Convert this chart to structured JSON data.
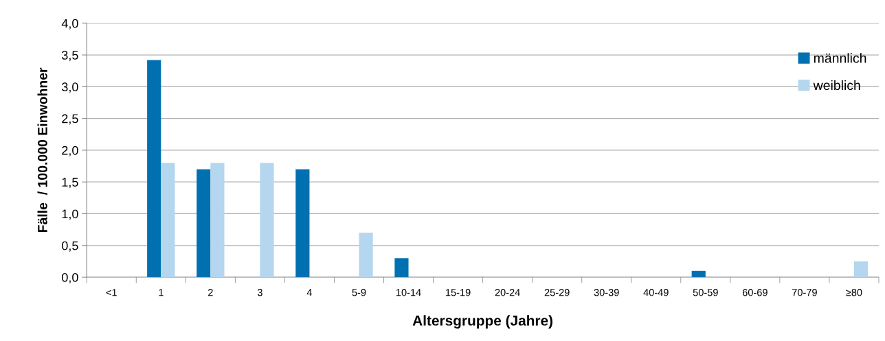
{
  "chart_data": {
    "type": "bar",
    "xlabel": "Altersgruppe (Jahre)",
    "ylabel": "Fälle  / 100.000 Einwohner",
    "categories": [
      "<1",
      "1",
      "2",
      "3",
      "4",
      "5-9",
      "10-14",
      "15-19",
      "20-24",
      "25-29",
      "30-39",
      "40-49",
      "50-59",
      "60-69",
      "70-79",
      "≥80"
    ],
    "series": [
      {
        "name": "männlich",
        "color": "#0070b0",
        "values": [
          0,
          3.42,
          1.7,
          0,
          1.7,
          0,
          0.3,
          0,
          0,
          0,
          0,
          0,
          0.1,
          0,
          0,
          0
        ]
      },
      {
        "name": "weiblich",
        "color": "#b4d6ee",
        "values": [
          0,
          1.8,
          1.8,
          1.8,
          0,
          0.7,
          0,
          0,
          0,
          0,
          0,
          0,
          0,
          0,
          0,
          0.25
        ]
      }
    ],
    "ylim": [
      0,
      4
    ],
    "yticks": [
      {
        "value": 0,
        "label": "0,0"
      },
      {
        "value": 0.5,
        "label": "0,5"
      },
      {
        "value": 1,
        "label": "1,0"
      },
      {
        "value": 1.5,
        "label": "1,5"
      },
      {
        "value": 2,
        "label": "2,0"
      },
      {
        "value": 2.5,
        "label": "2,5"
      },
      {
        "value": 3,
        "label": "3,0"
      },
      {
        "value": 3.5,
        "label": "3,5"
      },
      {
        "value": 4,
        "label": "4,0"
      }
    ],
    "grid": "y",
    "legend": "top right"
  }
}
